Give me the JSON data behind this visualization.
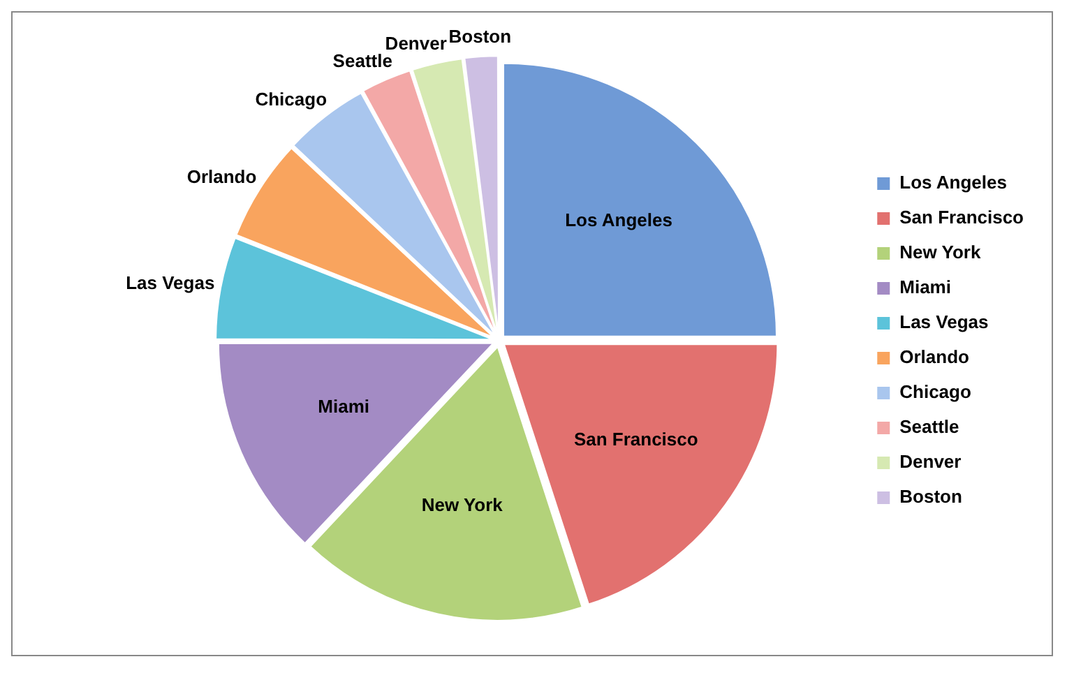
{
  "chart_data": {
    "type": "pie",
    "categories": [
      "Los Angeles",
      "San Francisco",
      "New York",
      "Miami",
      "Las Vegas",
      "Orlando",
      "Chicago",
      "Seattle",
      "Denver",
      "Boston"
    ],
    "values": [
      25,
      20,
      17,
      13,
      6,
      6,
      5,
      3,
      3,
      2
    ],
    "colors": [
      "#6f9ad6",
      "#e2716f",
      "#b3d27a",
      "#a38bc4",
      "#5cc3da",
      "#f9a45e",
      "#a9c6ee",
      "#f3a8a7",
      "#d6e9b2",
      "#cdbfe3"
    ],
    "legend": "right"
  }
}
